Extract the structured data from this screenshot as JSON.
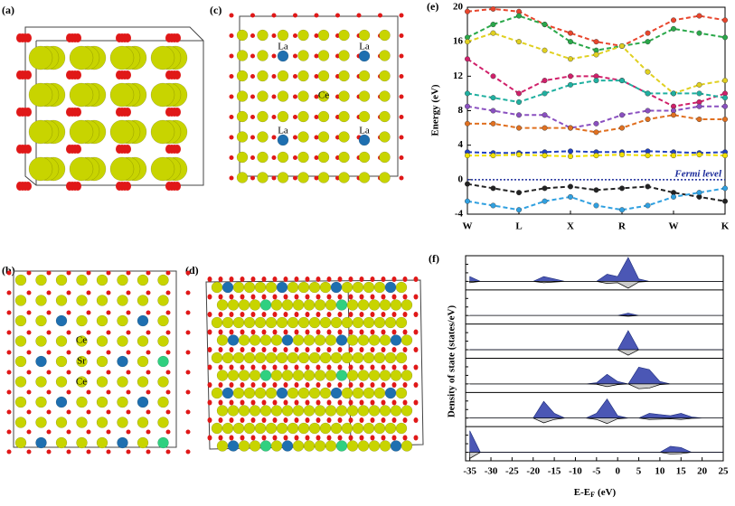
{
  "panels": {
    "a": {
      "label": "(a)"
    },
    "b": {
      "label": "(b)",
      "atom_labels": [
        "Ce",
        "Sr",
        "Ce"
      ]
    },
    "c": {
      "label": "(c)",
      "atom_labels": [
        "La",
        "La",
        "Ce",
        "La",
        "La"
      ]
    },
    "d": {
      "label": "(d)"
    }
  },
  "chart_data": [
    {
      "type": "line",
      "label": "(e)",
      "ylabel": "Energy (eV)",
      "annotation": "Fermi level",
      "categories": [
        "W",
        null,
        "L",
        null,
        "X",
        null,
        "R",
        null,
        "W",
        null,
        "K"
      ],
      "ylim": [
        -4,
        20
      ],
      "yticks": [
        -4,
        0,
        4,
        8,
        12,
        16,
        20
      ],
      "series": [
        {
          "color": "#e8452c",
          "values": [
            19.5,
            19.8,
            19.5,
            18,
            17,
            16,
            15.5,
            17,
            18.5,
            19,
            18.5
          ]
        },
        {
          "color": "#2aa84a",
          "values": [
            16.5,
            18,
            19,
            18,
            16,
            15,
            15.5,
            16,
            17.5,
            17,
            16.5
          ]
        },
        {
          "color": "#e0d020",
          "values": [
            16,
            17,
            16,
            15,
            14,
            14.5,
            15.5,
            12.5,
            10,
            11,
            11.5
          ]
        },
        {
          "color": "#d0206a",
          "values": [
            14,
            12,
            10,
            11.5,
            12,
            12,
            11.5,
            10,
            8.5,
            9,
            10
          ]
        },
        {
          "color": "#20b0a0",
          "values": [
            10,
            9.5,
            9,
            10,
            11,
            11.5,
            11.5,
            10,
            10,
            10,
            9.5
          ]
        },
        {
          "color": "#8a50c0",
          "values": [
            8.5,
            8,
            7.5,
            7.5,
            6,
            6.5,
            7.5,
            8,
            8,
            8.5,
            8.5
          ]
        },
        {
          "color": "#e07020",
          "values": [
            6.5,
            6.5,
            6,
            6,
            6,
            5.5,
            6,
            7,
            7.5,
            7,
            7
          ]
        },
        {
          "color": "#2040c0",
          "values": [
            3.2,
            3.1,
            3.1,
            3.2,
            3.3,
            3.2,
            3.2,
            3.3,
            3.2,
            3.1,
            3.2
          ]
        },
        {
          "color": "#f0e000",
          "values": [
            2.8,
            2.8,
            2.9,
            2.8,
            2.7,
            2.8,
            2.9,
            2.8,
            2.8,
            2.9,
            2.8
          ]
        },
        {
          "color": "#222222",
          "values": [
            -0.5,
            -1,
            -1.5,
            -1,
            -0.8,
            -1.2,
            -1,
            -0.8,
            -1.5,
            -2,
            -2.5
          ]
        },
        {
          "color": "#30a0e0",
          "values": [
            -2.5,
            -3,
            -3.5,
            -2.5,
            -2,
            -3,
            -3.5,
            -3,
            -2,
            -1.5,
            -1
          ]
        }
      ]
    },
    {
      "type": "area",
      "label": "(f)",
      "ylabel": "Density of state (states/eV)",
      "xlabel": "E-E",
      "xlabel_sub": "F",
      "xlabel_unit": "(eV)",
      "xlim": [
        -36,
        25
      ],
      "xticks": [
        -35,
        -30,
        -25,
        -20,
        -15,
        -10,
        -5,
        0,
        5,
        10,
        15,
        20,
        25
      ],
      "ylim": [
        -1,
        1
      ],
      "x": [
        -35,
        -32.5,
        -30,
        -27.5,
        -25,
        -22.5,
        -20,
        -17.5,
        -15,
        -12.5,
        -10,
        -7.5,
        -5,
        -2.5,
        0,
        2.5,
        5,
        7.5,
        10,
        12.5,
        15,
        17.5,
        20,
        22.5,
        25
      ],
      "series": [
        {
          "color": "#2b3aa8",
          "values": [
            0.2,
            0,
            0,
            0,
            0,
            0,
            0,
            0.2,
            0.1,
            0,
            0,
            0,
            0,
            0.3,
            0.2,
            1,
            0.1,
            0,
            0,
            0,
            0,
            0,
            0,
            0,
            0
          ]
        },
        {
          "color": "#2b3aa8",
          "values": [
            0,
            0,
            0,
            0,
            0,
            0,
            0,
            0,
            0,
            0,
            0,
            0,
            0,
            0,
            0,
            0.1,
            0,
            0,
            0,
            0,
            0,
            0,
            0,
            0,
            0
          ]
        },
        {
          "color": "#2b3aa8",
          "values": [
            0,
            0,
            0,
            0,
            0,
            0,
            0,
            0,
            0,
            0,
            0,
            0,
            0,
            0,
            0,
            0.8,
            0,
            0,
            0,
            0,
            0,
            0,
            0,
            0,
            0
          ]
        },
        {
          "color": "#2b3aa8",
          "values": [
            0,
            0,
            0,
            0,
            0,
            0,
            0,
            0,
            0,
            0,
            0,
            0,
            0.05,
            0.4,
            0.1,
            0,
            0.7,
            0.6,
            0.1,
            0,
            0,
            0,
            0,
            0,
            0
          ]
        },
        {
          "color": "#2b3aa8",
          "values": [
            0,
            0,
            0,
            0,
            0,
            0,
            0,
            0.7,
            0.2,
            0,
            0,
            0,
            0.2,
            0.8,
            0.1,
            0,
            0,
            0.2,
            0.15,
            0.1,
            0.2,
            0.05,
            0,
            0,
            0
          ]
        },
        {
          "color": "#2b3aa8",
          "values": [
            0.9,
            0,
            0,
            0,
            0,
            0,
            0,
            0,
            0,
            0,
            0,
            0,
            0,
            0,
            0,
            0,
            0,
            0,
            0,
            0.25,
            0.2,
            0,
            0,
            0,
            0
          ]
        }
      ]
    }
  ]
}
